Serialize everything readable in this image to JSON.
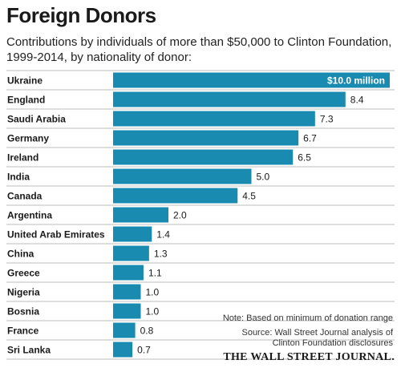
{
  "header": {
    "title": "Foreign Donors",
    "subtitle": "Contributions by individuals of more than $50,000 to Clinton Foundation, 1999-2014, by nationality of donor:"
  },
  "footer": {
    "note": "Note: Based on minimum of donation range",
    "source": "Source: Wall Street Journal analysis of Clinton Foundation disclosures",
    "publisher": "THE WALL STREET JOURNAL."
  },
  "chart_data": {
    "type": "bar",
    "orientation": "horizontal",
    "categories": [
      "Ukraine",
      "England",
      "Saudi Arabia",
      "Germany",
      "Ireland",
      "India",
      "Canada",
      "Argentina",
      "United Arab Emirates",
      "China",
      "Greece",
      "Nigeria",
      "Bosnia",
      "France",
      "Sri Lanka"
    ],
    "values": [
      10.0,
      8.4,
      7.3,
      6.7,
      6.5,
      5.0,
      4.5,
      2.0,
      1.4,
      1.3,
      1.1,
      1.0,
      1.0,
      0.8,
      0.7
    ],
    "value_labels": [
      "$10.0 million",
      "8.4",
      "7.3",
      "6.7",
      "6.5",
      "5.0",
      "4.5",
      "2.0",
      "1.4",
      "1.3",
      "1.1",
      "1.0",
      "1.0",
      "0.8",
      "0.7"
    ],
    "unit": "million USD",
    "bar_color": "#1a8bb0",
    "row_divider_color": "#bdbdbd",
    "xlim": [
      0,
      10
    ]
  }
}
